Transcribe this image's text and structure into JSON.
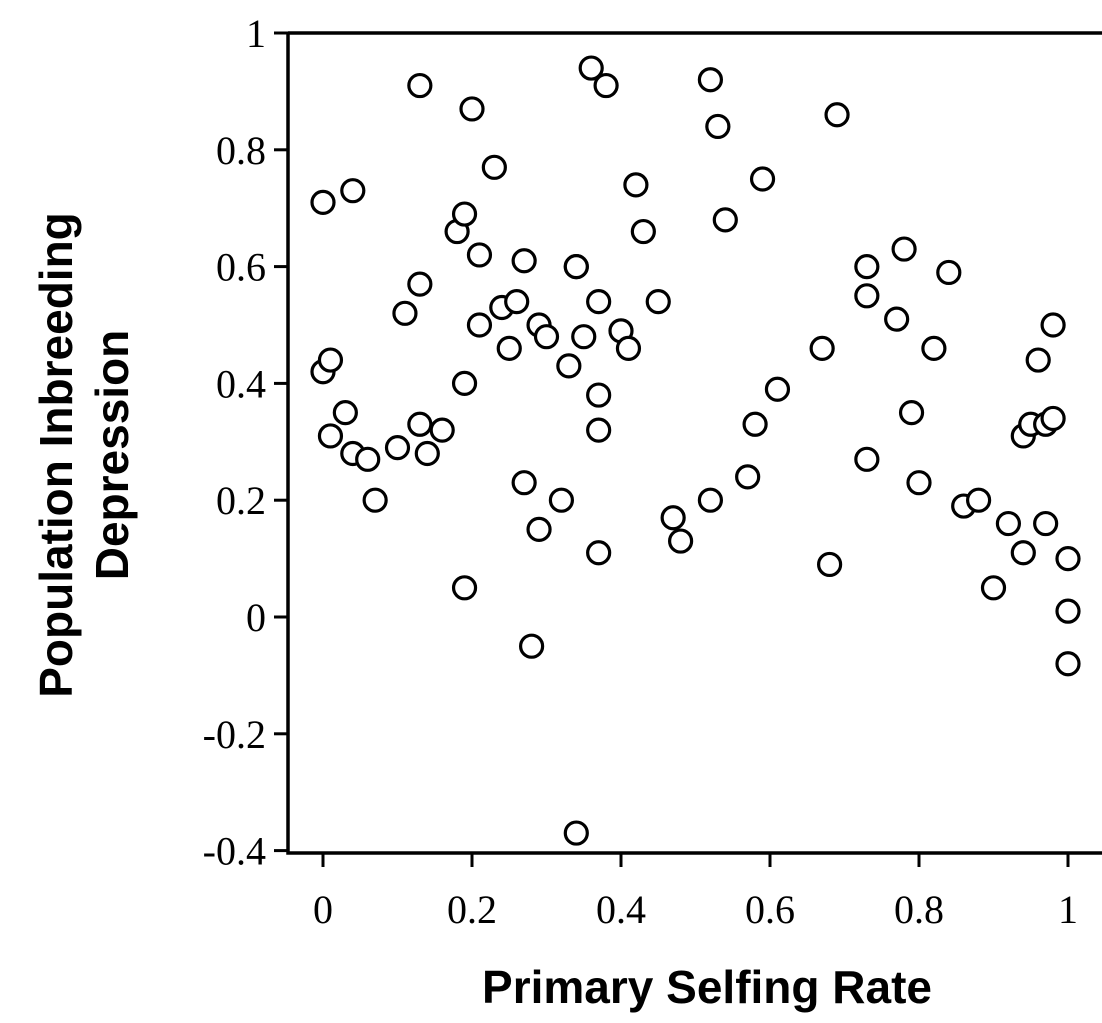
{
  "chart_data": {
    "type": "scatter",
    "xlabel": "Primary Selfing Rate",
    "ylabel_lines": [
      "Population Inbreeding",
      "Depression"
    ],
    "xlim": [
      -0.05,
      1.05
    ],
    "ylim": [
      -0.4,
      1.0
    ],
    "x_ticks": [
      0,
      0.2,
      0.4,
      0.6,
      0.8,
      1
    ],
    "x_tick_labels": [
      "0",
      "0.2",
      "0.4",
      "0.6",
      "0.8",
      "1"
    ],
    "y_ticks": [
      -0.4,
      -0.2,
      0,
      0.2,
      0.4,
      0.6,
      0.8,
      1
    ],
    "y_tick_labels": [
      "-0.4",
      "-0.2",
      "0",
      "0.2",
      "0.4",
      "0.6",
      "0.8",
      "1"
    ],
    "grid": false,
    "marker": "open-circle",
    "points": [
      [
        0.0,
        0.71
      ],
      [
        0.04,
        0.73
      ],
      [
        0.0,
        0.42
      ],
      [
        0.01,
        0.44
      ],
      [
        0.01,
        0.31
      ],
      [
        0.03,
        0.35
      ],
      [
        0.04,
        0.28
      ],
      [
        0.06,
        0.27
      ],
      [
        0.07,
        0.2
      ],
      [
        0.1,
        0.29
      ],
      [
        0.11,
        0.52
      ],
      [
        0.13,
        0.91
      ],
      [
        0.13,
        0.57
      ],
      [
        0.13,
        0.33
      ],
      [
        0.14,
        0.28
      ],
      [
        0.16,
        0.32
      ],
      [
        0.18,
        0.66
      ],
      [
        0.19,
        0.69
      ],
      [
        0.19,
        0.4
      ],
      [
        0.19,
        0.05
      ],
      [
        0.2,
        0.87
      ],
      [
        0.21,
        0.62
      ],
      [
        0.21,
        0.5
      ],
      [
        0.23,
        0.77
      ],
      [
        0.24,
        0.53
      ],
      [
        0.25,
        0.46
      ],
      [
        0.26,
        0.54
      ],
      [
        0.27,
        0.61
      ],
      [
        0.27,
        0.23
      ],
      [
        0.28,
        -0.05
      ],
      [
        0.29,
        0.5
      ],
      [
        0.29,
        0.15
      ],
      [
        0.3,
        0.48
      ],
      [
        0.32,
        0.2
      ],
      [
        0.33,
        0.43
      ],
      [
        0.34,
        0.6
      ],
      [
        0.34,
        0.6
      ],
      [
        0.34,
        -0.37
      ],
      [
        0.35,
        0.48
      ],
      [
        0.36,
        0.94
      ],
      [
        0.37,
        0.54
      ],
      [
        0.37,
        0.38
      ],
      [
        0.37,
        0.32
      ],
      [
        0.37,
        0.11
      ],
      [
        0.38,
        0.91
      ],
      [
        0.4,
        0.49
      ],
      [
        0.41,
        0.46
      ],
      [
        0.42,
        0.74
      ],
      [
        0.43,
        0.66
      ],
      [
        0.45,
        0.54
      ],
      [
        0.47,
        0.17
      ],
      [
        0.48,
        0.13
      ],
      [
        0.52,
        0.92
      ],
      [
        0.52,
        0.2
      ],
      [
        0.53,
        0.84
      ],
      [
        0.54,
        0.68
      ],
      [
        0.57,
        0.24
      ],
      [
        0.58,
        0.33
      ],
      [
        0.59,
        0.75
      ],
      [
        0.61,
        0.39
      ],
      [
        0.67,
        0.46
      ],
      [
        0.68,
        0.09
      ],
      [
        0.69,
        0.86
      ],
      [
        0.73,
        0.6
      ],
      [
        0.73,
        0.55
      ],
      [
        0.73,
        0.27
      ],
      [
        0.77,
        0.51
      ],
      [
        0.78,
        0.63
      ],
      [
        0.79,
        0.35
      ],
      [
        0.8,
        0.23
      ],
      [
        0.82,
        0.46
      ],
      [
        0.84,
        0.59
      ],
      [
        0.86,
        0.19
      ],
      [
        0.88,
        0.2
      ],
      [
        0.9,
        0.05
      ],
      [
        0.92,
        0.16
      ],
      [
        0.94,
        0.11
      ],
      [
        0.94,
        0.31
      ],
      [
        0.95,
        0.33
      ],
      [
        0.96,
        0.44
      ],
      [
        0.97,
        0.33
      ],
      [
        0.97,
        0.16
      ],
      [
        0.98,
        0.34
      ],
      [
        0.98,
        0.5
      ],
      [
        1.0,
        0.1
      ],
      [
        1.0,
        0.01
      ],
      [
        1.0,
        -0.08
      ]
    ]
  }
}
